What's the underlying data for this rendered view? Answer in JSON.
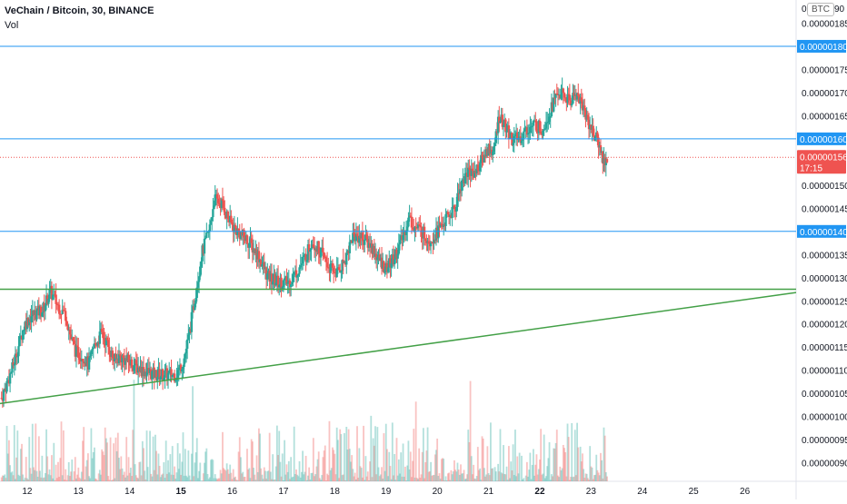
{
  "header": {
    "symbol": "VeChain / Bitcoin, 30, BINANCE",
    "volume_label": "Vol",
    "currency_tag": "BTC"
  },
  "countdown": "17:15",
  "colors": {
    "up": "#26a69a",
    "down": "#ef5350",
    "hline": "#2196f3",
    "trend": "#43a047",
    "axis_text": "#131722",
    "last_price": "#ef5350"
  },
  "chart_data": {
    "type": "candlestick",
    "ylim": [
      8.6e-07,
      1.9e-06
    ],
    "y_ticks": [
      "0.00000090",
      "0.00000095",
      "0.00000100",
      "0.00000105",
      "0.00000110",
      "0.00000115",
      "0.00000120",
      "0.00000125",
      "0.00000130",
      "0.00000135",
      "0.00000145",
      "0.00000150",
      "0.00000165",
      "0.00000170",
      "0.00000175",
      "0.00000185"
    ],
    "y_tick_values": [
      9e-07,
      9.5e-07,
      1e-06,
      1.05e-06,
      1.1e-06,
      1.15e-06,
      1.2e-06,
      1.25e-06,
      1.3e-06,
      1.35e-06,
      1.45e-06,
      1.5e-06,
      1.65e-06,
      1.7e-06,
      1.75e-06,
      1.85e-06
    ],
    "top_tick_label": "0.0",
    "top_tick_suffix": "90",
    "x_ticks": [
      "12",
      "13",
      "14",
      "15",
      "16",
      "17",
      "18",
      "19",
      "20",
      "21",
      "22",
      "23",
      "24",
      "25",
      "26"
    ],
    "x_tick_values": [
      12,
      13,
      14,
      15,
      16,
      17,
      18,
      19,
      20,
      21,
      22,
      23,
      24,
      25,
      26
    ],
    "x_tick_bold": [
      "15",
      "22"
    ],
    "xlim": [
      11.47,
      27.0
    ],
    "horizontal_lines": [
      {
        "value": 1.8e-06,
        "label": "0.00000180"
      },
      {
        "value": 1.6e-06,
        "label": "0.00000160"
      },
      {
        "value": 1.4e-06,
        "label": "0.00000140"
      }
    ],
    "last_price": {
      "value": 1.56e-06,
      "label": "0.00000156"
    },
    "trendlines": [
      {
        "x1": 11.47,
        "y1": 1.275e-06,
        "x2": 27.0,
        "y2": 1.275e-06
      },
      {
        "x1": 11.47,
        "y1": 1.028e-06,
        "x2": 27.0,
        "y2": 1.268e-06
      }
    ],
    "price_path": [
      [
        11.5,
        1.04
      ],
      [
        11.7,
        1.1
      ],
      [
        11.85,
        1.16
      ],
      [
        11.95,
        1.2
      ],
      [
        12.1,
        1.22
      ],
      [
        12.3,
        1.23
      ],
      [
        12.45,
        1.27
      ],
      [
        12.6,
        1.24
      ],
      [
        12.75,
        1.22
      ],
      [
        12.85,
        1.17
      ],
      [
        12.95,
        1.14
      ],
      [
        13.1,
        1.13
      ],
      [
        13.2,
        1.11
      ],
      [
        13.3,
        1.15
      ],
      [
        13.45,
        1.18
      ],
      [
        13.55,
        1.16
      ],
      [
        13.7,
        1.12
      ],
      [
        13.8,
        1.13
      ],
      [
        13.95,
        1.12
      ],
      [
        14.1,
        1.11
      ],
      [
        14.25,
        1.1
      ],
      [
        14.5,
        1.09
      ],
      [
        14.7,
        1.09
      ],
      [
        14.9,
        1.09
      ],
      [
        15.05,
        1.12
      ],
      [
        15.15,
        1.17
      ],
      [
        15.25,
        1.24
      ],
      [
        15.4,
        1.35
      ],
      [
        15.55,
        1.4
      ],
      [
        15.65,
        1.47
      ],
      [
        15.8,
        1.46
      ],
      [
        15.95,
        1.42
      ],
      [
        16.1,
        1.4
      ],
      [
        16.3,
        1.38
      ],
      [
        16.5,
        1.35
      ],
      [
        16.7,
        1.3
      ],
      [
        16.9,
        1.29
      ],
      [
        17.1,
        1.29
      ],
      [
        17.3,
        1.32
      ],
      [
        17.45,
        1.35
      ],
      [
        17.55,
        1.38
      ],
      [
        17.7,
        1.36
      ],
      [
        17.9,
        1.32
      ],
      [
        18.05,
        1.31
      ],
      [
        18.2,
        1.34
      ],
      [
        18.35,
        1.39
      ],
      [
        18.5,
        1.39
      ],
      [
        18.7,
        1.37
      ],
      [
        18.85,
        1.34
      ],
      [
        19.0,
        1.32
      ],
      [
        19.15,
        1.34
      ],
      [
        19.3,
        1.38
      ],
      [
        19.45,
        1.43
      ],
      [
        19.55,
        1.41
      ],
      [
        19.7,
        1.4
      ],
      [
        19.85,
        1.38
      ],
      [
        20.0,
        1.4
      ],
      [
        20.2,
        1.43
      ],
      [
        20.35,
        1.45
      ],
      [
        20.45,
        1.5
      ],
      [
        20.6,
        1.53
      ],
      [
        20.75,
        1.53
      ],
      [
        20.9,
        1.56
      ],
      [
        21.0,
        1.58
      ],
      [
        21.1,
        1.57
      ],
      [
        21.2,
        1.65
      ],
      [
        21.35,
        1.62
      ],
      [
        21.45,
        1.6
      ],
      [
        21.6,
        1.6
      ],
      [
        21.75,
        1.62
      ],
      [
        21.9,
        1.63
      ],
      [
        22.05,
        1.62
      ],
      [
        22.2,
        1.66
      ],
      [
        22.35,
        1.7
      ],
      [
        22.5,
        1.69
      ],
      [
        22.6,
        1.68
      ],
      [
        22.7,
        1.7
      ],
      [
        22.8,
        1.68
      ],
      [
        22.9,
        1.65
      ],
      [
        23.05,
        1.61
      ],
      [
        23.15,
        1.59
      ],
      [
        23.25,
        1.55
      ],
      [
        23.33,
        1.56
      ]
    ]
  }
}
